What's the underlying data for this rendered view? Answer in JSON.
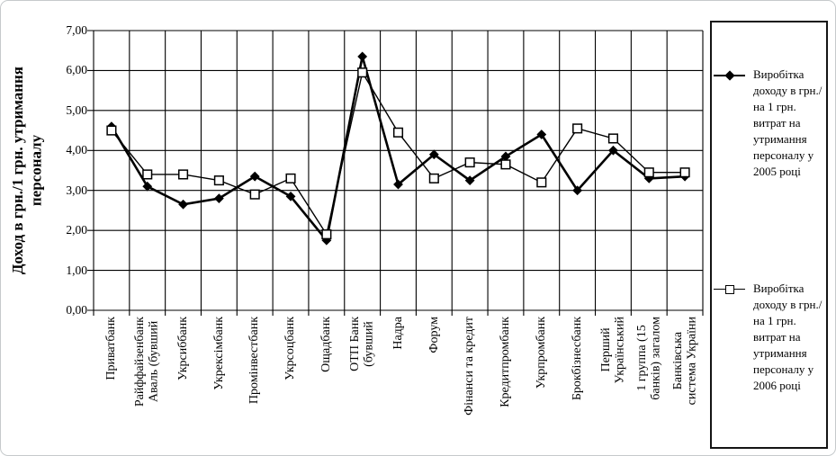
{
  "chart_data": {
    "type": "line",
    "title": "",
    "y_axis": {
      "title": "Доход в грн./1 грн. утримання\nперсоналу",
      "min": 0,
      "max": 7,
      "step": 1,
      "tick_labels": [
        "0,00",
        "1,00",
        "2,00",
        "3,00",
        "4,00",
        "5,00",
        "6,00",
        "7,00"
      ]
    },
    "categories": [
      "Приватбанк",
      "Райффайзенбанк\nАваль (бувший",
      "Укрсиббанк",
      "Укрексімбанк",
      "Промінвестбанк",
      "Укрсоцбанк",
      "Ощадбанк",
      "ОТП Банк\n(бувший",
      "Надра",
      "Форум",
      "Фінанси та кредит",
      "Кредитпромбанк",
      "Укрпромбанк",
      "Брокбізнесбанк",
      "Перший\nУкраїнський",
      "1 группа (15\nбанків) загалом",
      "Банківська\nсистема України"
    ],
    "series": [
      {
        "name": "Виробітка\nдоходу в грн./\nна 1 грн.\nвитрат на\nутримання\nперсоналу у\n2005 році",
        "marker": "filled-diamond",
        "color": "#000000",
        "values": [
          4.6,
          3.1,
          2.65,
          2.8,
          3.35,
          2.85,
          1.75,
          6.35,
          3.15,
          3.9,
          3.25,
          3.85,
          4.4,
          3.0,
          4.0,
          3.3,
          3.35
        ]
      },
      {
        "name": "Виробітка\nдоходу в грн./\nна 1 грн.\nвитрат на\nутримання\nперсоналу у\n2006 році",
        "marker": "open-square",
        "color": "#000000",
        "values": [
          4.5,
          3.4,
          3.4,
          3.25,
          2.9,
          3.3,
          1.9,
          5.95,
          4.45,
          3.3,
          3.7,
          3.65,
          3.2,
          4.55,
          4.3,
          3.45,
          3.45
        ]
      }
    ],
    "legend_position": "right",
    "grid": true,
    "colors": {
      "line": "#000000",
      "grid": "#000000",
      "background": "#ffffff",
      "frame_border": "#c6cacc"
    }
  }
}
